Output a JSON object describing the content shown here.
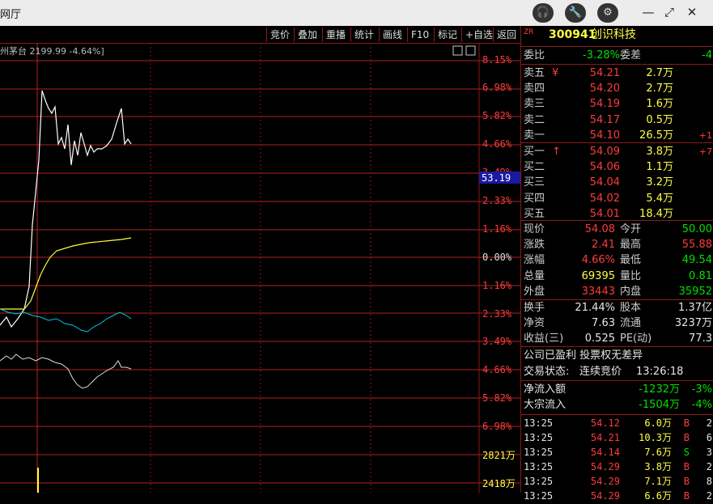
{
  "window": {
    "title": "网厅",
    "btn_support": "headset-icon",
    "btn_tools": "wrench-icon",
    "btn_settings": "gear-icon",
    "min": "—",
    "max": "⤢",
    "close": "✕"
  },
  "toolbar": [
    "竞价",
    "叠加",
    "重播",
    "统计",
    "画线",
    "F10",
    "标记",
    "+自选",
    "返回"
  ],
  "chart_header": "州茅台 2199.99 -4.64%]",
  "price_axis": [
    "8.15%",
    "6.98%",
    "5.82%",
    "4.66%",
    "3.49%",
    "2.33%",
    "1.16%",
    "0.00%",
    "1.16%",
    "2.33%",
    "3.49%",
    "4.66%",
    "5.82%",
    "6.98%"
  ],
  "cursor_price": "53.19",
  "vol_axis": [
    "2821万",
    "2418万"
  ],
  "stock": {
    "tag": "ZR",
    "code": "300941",
    "name": "创识科技"
  },
  "weibi": {
    "label": "委比",
    "value": "-3.28%",
    "label2": "委差",
    "value2": "-4"
  },
  "asks": [
    {
      "label": "卖五",
      "mark": "¥",
      "price": "54.21",
      "vol": "2.7万",
      "chg": ""
    },
    {
      "label": "卖四",
      "mark": "",
      "price": "54.20",
      "vol": "2.7万",
      "chg": ""
    },
    {
      "label": "卖三",
      "mark": "",
      "price": "54.19",
      "vol": "1.6万",
      "chg": ""
    },
    {
      "label": "卖二",
      "mark": "",
      "price": "54.17",
      "vol": "0.5万",
      "chg": ""
    },
    {
      "label": "卖一",
      "mark": "",
      "price": "54.10",
      "vol": "26.5万",
      "chg": "+1"
    }
  ],
  "bids": [
    {
      "label": "买一",
      "mark": "↑",
      "price": "54.09",
      "vol": "3.8万",
      "chg": "+7"
    },
    {
      "label": "买二",
      "mark": "",
      "price": "54.06",
      "vol": "1.1万",
      "chg": ""
    },
    {
      "label": "买三",
      "mark": "",
      "price": "54.04",
      "vol": "3.2万",
      "chg": ""
    },
    {
      "label": "买四",
      "mark": "",
      "price": "54.02",
      "vol": "5.4万",
      "chg": ""
    },
    {
      "label": "买五",
      "mark": "",
      "price": "54.01",
      "vol": "18.4万",
      "chg": ""
    }
  ],
  "quote": [
    {
      "l1": "现价",
      "v1": "54.08",
      "c1": "red",
      "l2": "今开",
      "v2": "50.00",
      "c2": "grn"
    },
    {
      "l1": "涨跌",
      "v1": "2.41",
      "c1": "red",
      "l2": "最高",
      "v2": "55.88",
      "c2": "red"
    },
    {
      "l1": "涨幅",
      "v1": "4.66%",
      "c1": "red",
      "l2": "最低",
      "v2": "49.54",
      "c2": "grn"
    },
    {
      "l1": "总量",
      "v1": "69395",
      "c1": "yel",
      "l2": "量比",
      "v2": "0.81",
      "c2": "grn"
    },
    {
      "l1": "外盘",
      "v1": "33443",
      "c1": "red",
      "l2": "内盘",
      "v2": "35952",
      "c2": "grn"
    }
  ],
  "fund": [
    {
      "l1": "换手",
      "v1": "21.44%",
      "l2": "股本",
      "v2": "1.37亿"
    },
    {
      "l1": "净资",
      "v1": "7.63",
      "l2": "流通",
      "v2": "3237万"
    },
    {
      "l1": "收益(三)",
      "v1": "0.525",
      "l2": "PE(动)",
      "v2": "77.3"
    }
  ],
  "notice": "公司已盈利 投票权无差异",
  "status": {
    "label": "交易状态:",
    "value": "连续竞价",
    "time": "13:26:18"
  },
  "flows": [
    {
      "label": "净流入额",
      "value": "-1232万",
      "pct": "-3%"
    },
    {
      "label": "大宗流入",
      "value": "-1504万",
      "pct": "-4%"
    }
  ],
  "ticks": [
    {
      "t": "13:25",
      "p": "54.12",
      "v": "6.0万",
      "s": "B",
      "n": "2"
    },
    {
      "t": "13:25",
      "p": "54.21",
      "v": "10.3万",
      "s": "B",
      "n": "6"
    },
    {
      "t": "13:25",
      "p": "54.14",
      "v": "7.6万",
      "s": "S",
      "n": "3"
    },
    {
      "t": "13:25",
      "p": "54.29",
      "v": "3.8万",
      "s": "B",
      "n": "2"
    },
    {
      "t": "13:25",
      "p": "54.29",
      "v": "7.1万",
      "s": "B",
      "n": "8"
    },
    {
      "t": "13:25",
      "p": "54.29",
      "v": "6.6万",
      "s": "B",
      "n": "2"
    }
  ]
}
